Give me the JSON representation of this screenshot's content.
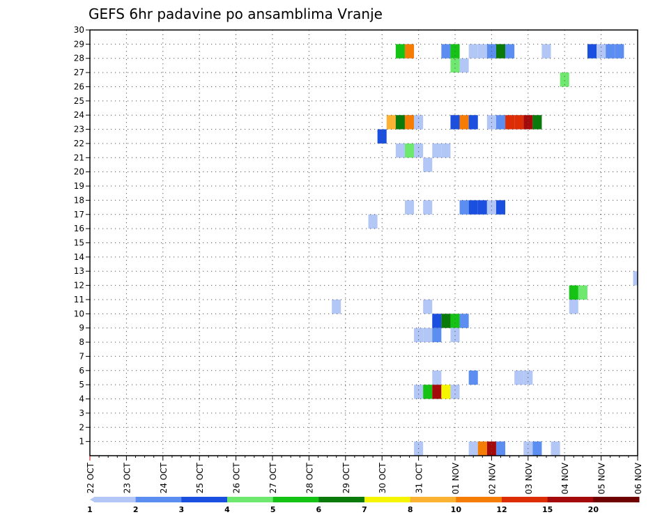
{
  "chart_data": {
    "type": "heatmap",
    "title": "GEFS 6hr padavine po ansamblima Vranje",
    "x_unit": "6-hour step (0 = 22 OCT 00Z)",
    "x_tick_labels": [
      "22 OCT",
      "23 OCT",
      "24 OCT",
      "25 OCT",
      "26 OCT",
      "27 OCT",
      "28 OCT",
      "29 OCT",
      "30 OCT",
      "31 OCT",
      "01 NOV",
      "02 NOV",
      "03 NOV",
      "04 NOV",
      "05 NOV",
      "06 NOV"
    ],
    "y_tick_labels": [
      "1",
      "2",
      "3",
      "4",
      "5",
      "6",
      "7",
      "8",
      "9",
      "10",
      "11",
      "12",
      "13",
      "14",
      "15",
      "16",
      "17",
      "18",
      "19",
      "20",
      "21",
      "22",
      "23",
      "24",
      "25",
      "26",
      "27",
      "28",
      "29",
      "30"
    ],
    "x_range": [
      0,
      60
    ],
    "y_range": [
      0,
      30
    ],
    "colorbar": {
      "labels": [
        "1",
        "2",
        "3",
        "4",
        "5",
        "6",
        "7",
        "8",
        "10",
        "12",
        "15",
        "20"
      ],
      "colors": [
        "#b3c7f7",
        "#5b8ef0",
        "#1a4fe0",
        "#6ee86e",
        "#14c314",
        "#0a7a0a",
        "#f5f500",
        "#fbb232",
        "#f57d05",
        "#dc2d05",
        "#a50a0a",
        "#6e0000"
      ]
    },
    "cells": [
      {
        "x": 34,
        "m": 29,
        "v": 5
      },
      {
        "x": 35,
        "m": 29,
        "v": 10
      },
      {
        "x": 39,
        "m": 29,
        "v": 2
      },
      {
        "x": 40,
        "m": 29,
        "v": 5
      },
      {
        "x": 42,
        "m": 29,
        "v": 1
      },
      {
        "x": 43,
        "m": 29,
        "v": 1
      },
      {
        "x": 44,
        "m": 29,
        "v": 2
      },
      {
        "x": 45,
        "m": 29,
        "v": 6
      },
      {
        "x": 46,
        "m": 29,
        "v": 2
      },
      {
        "x": 50,
        "m": 29,
        "v": 1
      },
      {
        "x": 55,
        "m": 29,
        "v": 3
      },
      {
        "x": 56,
        "m": 29,
        "v": 1
      },
      {
        "x": 57,
        "m": 29,
        "v": 2
      },
      {
        "x": 58,
        "m": 29,
        "v": 2
      },
      {
        "x": 40,
        "m": 28,
        "v": 4
      },
      {
        "x": 41,
        "m": 28,
        "v": 1
      },
      {
        "x": 52,
        "m": 27,
        "v": 4
      },
      {
        "x": 33,
        "m": 24,
        "v": 8
      },
      {
        "x": 34,
        "m": 24,
        "v": 6
      },
      {
        "x": 35,
        "m": 24,
        "v": 10
      },
      {
        "x": 36,
        "m": 24,
        "v": 1
      },
      {
        "x": 40,
        "m": 24,
        "v": 3
      },
      {
        "x": 41,
        "m": 24,
        "v": 10
      },
      {
        "x": 42,
        "m": 24,
        "v": 3
      },
      {
        "x": 44,
        "m": 24,
        "v": 1
      },
      {
        "x": 45,
        "m": 24,
        "v": 2
      },
      {
        "x": 46,
        "m": 24,
        "v": 12
      },
      {
        "x": 47,
        "m": 24,
        "v": 12
      },
      {
        "x": 48,
        "m": 24,
        "v": 15
      },
      {
        "x": 49,
        "m": 24,
        "v": 6
      },
      {
        "x": 32,
        "m": 23,
        "v": 3
      },
      {
        "x": 34,
        "m": 22,
        "v": 1
      },
      {
        "x": 35,
        "m": 22,
        "v": 4
      },
      {
        "x": 36,
        "m": 22,
        "v": 1
      },
      {
        "x": 38,
        "m": 22,
        "v": 1
      },
      {
        "x": 39,
        "m": 22,
        "v": 1
      },
      {
        "x": 37,
        "m": 21,
        "v": 1
      },
      {
        "x": 35,
        "m": 18,
        "v": 1
      },
      {
        "x": 37,
        "m": 18,
        "v": 1
      },
      {
        "x": 41,
        "m": 18,
        "v": 2
      },
      {
        "x": 42,
        "m": 18,
        "v": 3
      },
      {
        "x": 43,
        "m": 18,
        "v": 3
      },
      {
        "x": 44,
        "m": 18,
        "v": 1
      },
      {
        "x": 45,
        "m": 18,
        "v": 3
      },
      {
        "x": 31,
        "m": 17,
        "v": 1
      },
      {
        "x": 60,
        "m": 13,
        "v": 1
      },
      {
        "x": 53,
        "m": 12,
        "v": 5
      },
      {
        "x": 54,
        "m": 12,
        "v": 4
      },
      {
        "x": 27,
        "m": 11,
        "v": 1
      },
      {
        "x": 37,
        "m": 11,
        "v": 1
      },
      {
        "x": 53,
        "m": 11,
        "v": 1
      },
      {
        "x": 38,
        "m": 10,
        "v": 3
      },
      {
        "x": 39,
        "m": 10,
        "v": 6
      },
      {
        "x": 40,
        "m": 10,
        "v": 5
      },
      {
        "x": 41,
        "m": 10,
        "v": 2
      },
      {
        "x": 36,
        "m": 9,
        "v": 1
      },
      {
        "x": 37,
        "m": 9,
        "v": 1
      },
      {
        "x": 38,
        "m": 9,
        "v": 2
      },
      {
        "x": 40,
        "m": 9,
        "v": 1
      },
      {
        "x": 38,
        "m": 6,
        "v": 1
      },
      {
        "x": 42,
        "m": 6,
        "v": 2
      },
      {
        "x": 47,
        "m": 6,
        "v": 1
      },
      {
        "x": 48,
        "m": 6,
        "v": 1
      },
      {
        "x": 36,
        "m": 5,
        "v": 1
      },
      {
        "x": 37,
        "m": 5,
        "v": 5
      },
      {
        "x": 38,
        "m": 5,
        "v": 15
      },
      {
        "x": 39,
        "m": 5,
        "v": 7
      },
      {
        "x": 40,
        "m": 5,
        "v": 1
      },
      {
        "x": 36,
        "m": 1,
        "v": 1
      },
      {
        "x": 42,
        "m": 1,
        "v": 1
      },
      {
        "x": 43,
        "m": 1,
        "v": 10
      },
      {
        "x": 44,
        "m": 1,
        "v": 15
      },
      {
        "x": 45,
        "m": 1,
        "v": 2
      },
      {
        "x": 48,
        "m": 1,
        "v": 1
      },
      {
        "x": 49,
        "m": 1,
        "v": 2
      },
      {
        "x": 51,
        "m": 1,
        "v": 1
      }
    ]
  }
}
